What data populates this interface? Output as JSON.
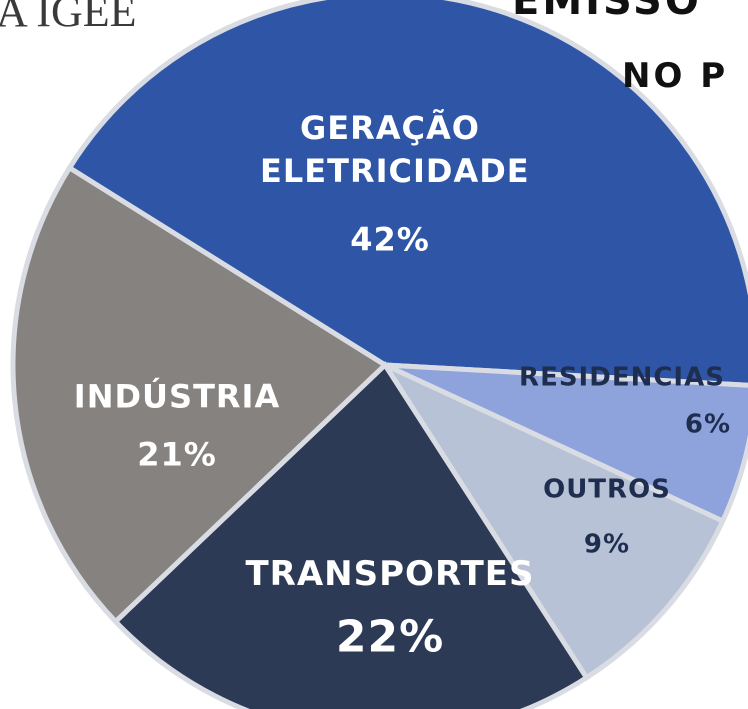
{
  "texts": [
    "A IGEE",
    "EMISSO",
    "NO P"
  ],
  "chart_data": {
    "type": "pie",
    "categories": [
      "GERAÇÃO ELETRICIDADE",
      "RESIDENCIAS",
      "OUTROS",
      "TRANSPORTES",
      "INDÚSTRIA"
    ],
    "values": [
      42,
      6,
      9,
      22,
      21
    ],
    "value_labels": [
      "42%",
      "6%",
      "9%",
      "22%",
      "21%"
    ],
    "colors": [
      "#2f56a6",
      "#8ea3dc",
      "#b8c2d7",
      "#2c3a56",
      "#868280"
    ]
  }
}
